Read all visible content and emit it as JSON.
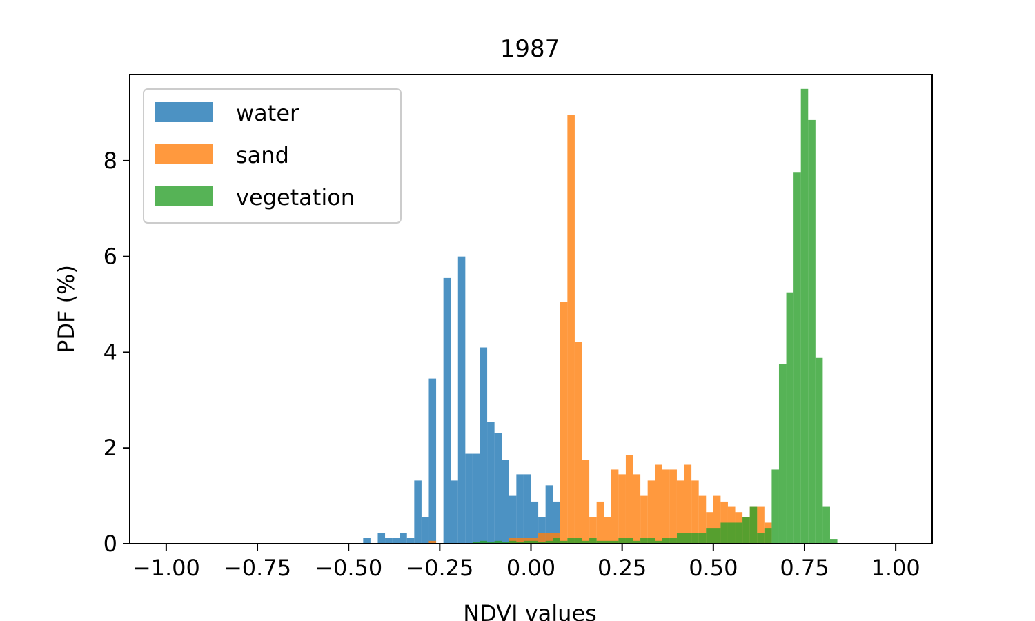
{
  "chart_data": {
    "type": "bar",
    "title": "1987",
    "xlabel": "NDVI values",
    "ylabel": "PDF (%)",
    "xlim": [
      -1.1,
      1.1
    ],
    "ylim": [
      0,
      9.8
    ],
    "xticks": [
      -1.0,
      -0.75,
      -0.5,
      -0.25,
      0.0,
      0.25,
      0.5,
      0.75,
      1.0
    ],
    "xtick_labels": [
      "−1.00",
      "−0.75",
      "−0.50",
      "−0.25",
      "0.00",
      "0.25",
      "0.50",
      "0.75",
      "1.00"
    ],
    "yticks": [
      0,
      2,
      4,
      6,
      8
    ],
    "ytick_labels": [
      "0",
      "2",
      "4",
      "6",
      "8"
    ],
    "grid": false,
    "legend_position": "top-left",
    "bin_width": 0.02,
    "series": [
      {
        "name": "water",
        "color": "#1f77b4",
        "opacity": 0.8,
        "bins": [
          [
            -0.46,
            0.12
          ],
          [
            -0.44,
            0
          ],
          [
            -0.42,
            0.22
          ],
          [
            -0.4,
            0.12
          ],
          [
            -0.38,
            0.12
          ],
          [
            -0.36,
            0.22
          ],
          [
            -0.34,
            0.12
          ],
          [
            -0.32,
            1.32
          ],
          [
            -0.3,
            0.55
          ],
          [
            -0.28,
            3.45
          ],
          [
            -0.26,
            0.0
          ],
          [
            -0.24,
            5.55
          ],
          [
            -0.22,
            1.32
          ],
          [
            -0.2,
            6.0
          ],
          [
            -0.18,
            1.88
          ],
          [
            -0.16,
            1.88
          ],
          [
            -0.14,
            4.1
          ],
          [
            -0.12,
            2.55
          ],
          [
            -0.1,
            2.32
          ],
          [
            -0.08,
            1.75
          ],
          [
            -0.06,
            1.0
          ],
          [
            -0.04,
            1.45
          ],
          [
            -0.02,
            1.45
          ],
          [
            0.0,
            0.88
          ],
          [
            0.02,
            0.55
          ],
          [
            0.04,
            1.22
          ],
          [
            0.06,
            0.88
          ]
        ]
      },
      {
        "name": "sand",
        "color": "#ff7f0e",
        "opacity": 0.8,
        "bins": [
          [
            -0.28,
            0.06
          ],
          [
            -0.06,
            0.12
          ],
          [
            -0.04,
            0.12
          ],
          [
            -0.02,
            0.12
          ],
          [
            0.0,
            0.12
          ],
          [
            0.02,
            0.22
          ],
          [
            0.04,
            0.22
          ],
          [
            0.06,
            0.22
          ],
          [
            0.08,
            5.05
          ],
          [
            0.1,
            8.95
          ],
          [
            0.12,
            4.22
          ],
          [
            0.14,
            1.75
          ],
          [
            0.16,
            0.55
          ],
          [
            0.18,
            0.88
          ],
          [
            0.2,
            0.55
          ],
          [
            0.22,
            1.55
          ],
          [
            0.24,
            1.45
          ],
          [
            0.26,
            1.85
          ],
          [
            0.28,
            1.45
          ],
          [
            0.3,
            1.0
          ],
          [
            0.32,
            1.32
          ],
          [
            0.34,
            1.65
          ],
          [
            0.36,
            1.55
          ],
          [
            0.38,
            1.55
          ],
          [
            0.4,
            1.32
          ],
          [
            0.42,
            1.65
          ],
          [
            0.44,
            1.32
          ],
          [
            0.46,
            1.0
          ],
          [
            0.48,
            0.66
          ],
          [
            0.5,
            1.0
          ],
          [
            0.52,
            0.88
          ],
          [
            0.54,
            0.77
          ],
          [
            0.56,
            0.66
          ],
          [
            0.58,
            0.55
          ],
          [
            0.6,
            0.77
          ],
          [
            0.62,
            0.77
          ],
          [
            0.64,
            0.44
          ]
        ]
      },
      {
        "name": "vegetation",
        "color": "#2ca02c",
        "opacity": 0.8,
        "bins": [
          [
            -0.16,
            0.03
          ],
          [
            -0.14,
            0.06
          ],
          [
            -0.12,
            0.03
          ],
          [
            -0.1,
            0.06
          ],
          [
            -0.08,
            0.03
          ],
          [
            -0.06,
            0.06
          ],
          [
            -0.04,
            0.03
          ],
          [
            -0.02,
            0.06
          ],
          [
            0.0,
            0.06
          ],
          [
            0.02,
            0.03
          ],
          [
            0.04,
            0.06
          ],
          [
            0.06,
            0.12
          ],
          [
            0.08,
            0.06
          ],
          [
            0.1,
            0.12
          ],
          [
            0.12,
            0.12
          ],
          [
            0.14,
            0.06
          ],
          [
            0.16,
            0.12
          ],
          [
            0.18,
            0.06
          ],
          [
            0.2,
            0.06
          ],
          [
            0.22,
            0.06
          ],
          [
            0.24,
            0.12
          ],
          [
            0.26,
            0.12
          ],
          [
            0.28,
            0.06
          ],
          [
            0.3,
            0.12
          ],
          [
            0.32,
            0.12
          ],
          [
            0.34,
            0.06
          ],
          [
            0.36,
            0.12
          ],
          [
            0.38,
            0.12
          ],
          [
            0.4,
            0.22
          ],
          [
            0.42,
            0.22
          ],
          [
            0.44,
            0.22
          ],
          [
            0.46,
            0.22
          ],
          [
            0.48,
            0.33
          ],
          [
            0.5,
            0.33
          ],
          [
            0.52,
            0.44
          ],
          [
            0.54,
            0.44
          ],
          [
            0.56,
            0.44
          ],
          [
            0.58,
            0.55
          ],
          [
            0.6,
            0.77
          ],
          [
            0.62,
            0.22
          ],
          [
            0.64,
            0.33
          ],
          [
            0.66,
            1.55
          ],
          [
            0.68,
            3.75
          ],
          [
            0.7,
            5.25
          ],
          [
            0.72,
            7.75
          ],
          [
            0.74,
            9.5
          ],
          [
            0.76,
            8.85
          ],
          [
            0.78,
            3.88
          ],
          [
            0.8,
            0.77
          ],
          [
            0.82,
            0.1
          ]
        ]
      }
    ]
  }
}
